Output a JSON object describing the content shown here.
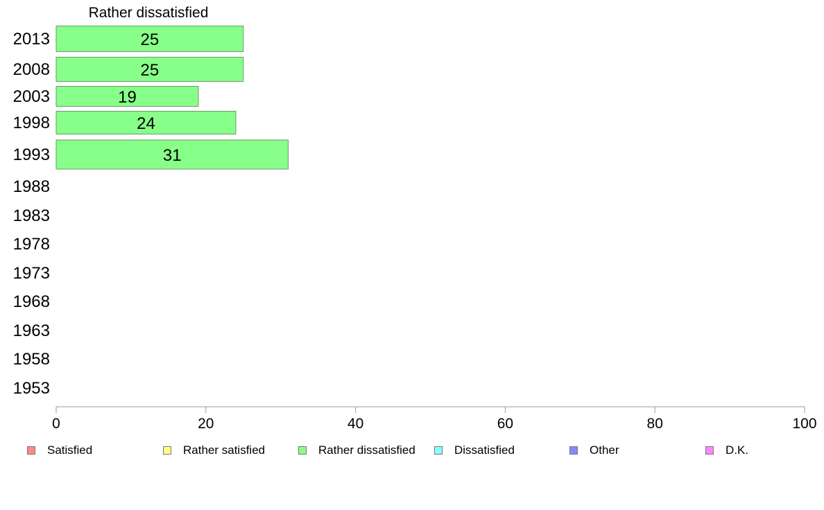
{
  "chart_data": {
    "type": "bar",
    "orientation": "horizontal",
    "title": "Rather dissatisfied",
    "categories": [
      "2013",
      "2008",
      "2003",
      "1998",
      "1993",
      "1988",
      "1983",
      "1978",
      "1973",
      "1968",
      "1963",
      "1958",
      "1953"
    ],
    "values": [
      25,
      25,
      19,
      24,
      31,
      null,
      null,
      null,
      null,
      null,
      null,
      null,
      null
    ],
    "xlim": [
      0,
      100
    ],
    "xticks": [
      0,
      20,
      40,
      60,
      80,
      100
    ],
    "bar_color": "#88ff88",
    "legend_position": "bottom",
    "legend": [
      {
        "label": "Satisfied",
        "color": "#ff8888"
      },
      {
        "label": "Rather satisfied",
        "color": "#ffff88"
      },
      {
        "label": "Rather dissatisfied",
        "color": "#88ff88"
      },
      {
        "label": "Dissatisfied",
        "color": "#88ffff"
      },
      {
        "label": "Other",
        "color": "#8888ff"
      },
      {
        "label": "D.K.",
        "color": "#ff88ff"
      }
    ]
  }
}
